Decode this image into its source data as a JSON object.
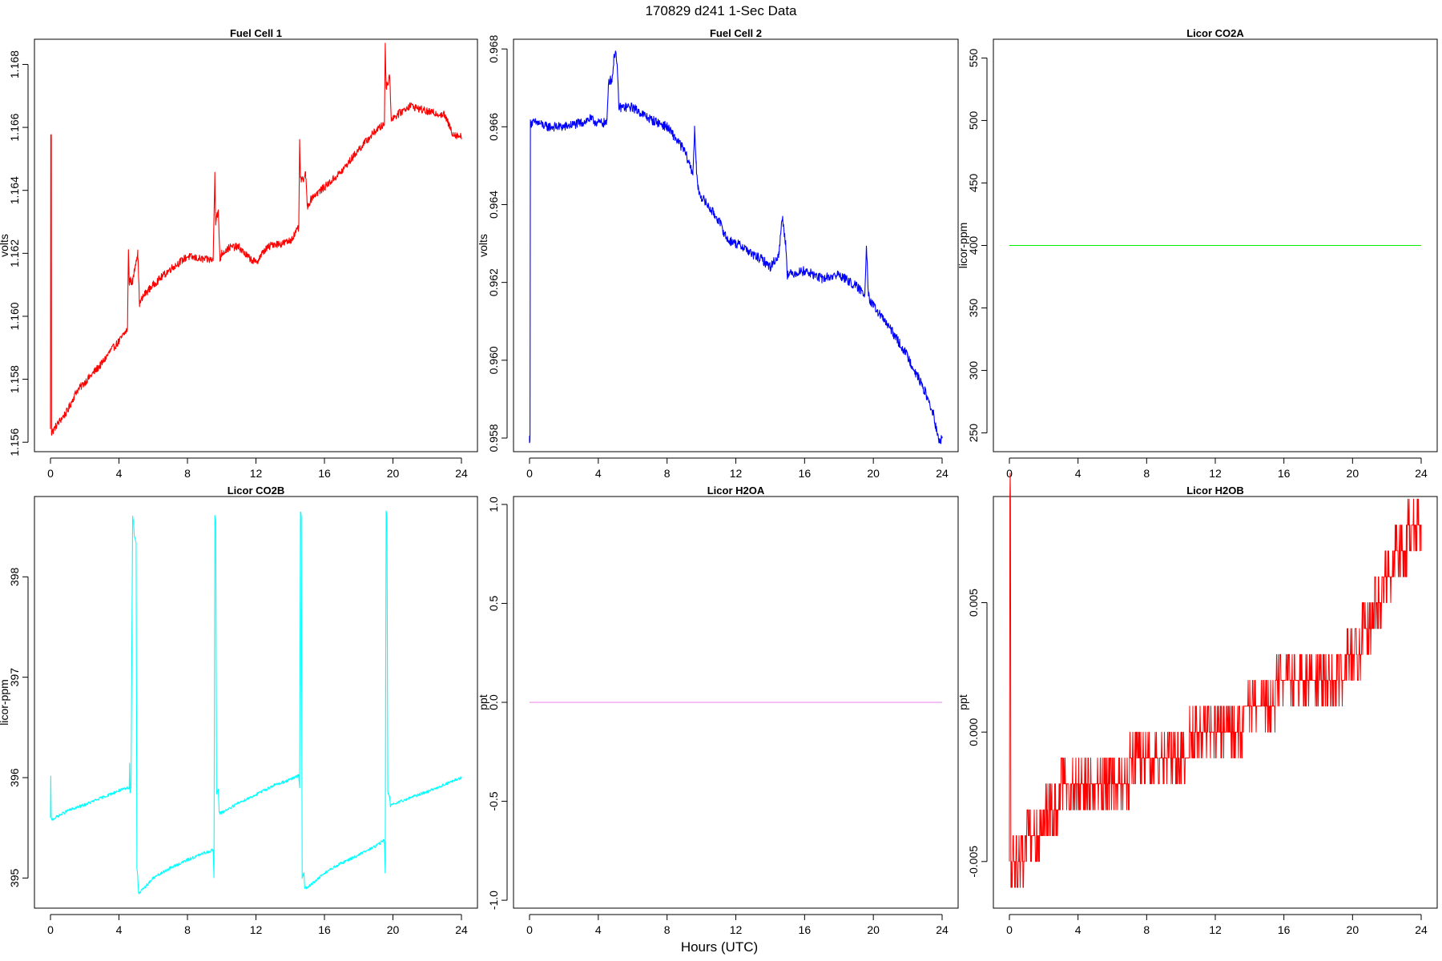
{
  "figure": {
    "title": "170829   d241   1-Sec Data",
    "xlabel": "Hours (UTC)"
  },
  "chart_data": [
    {
      "type": "line",
      "title": "Fuel Cell 1",
      "ylabel": "volts",
      "color": "#ff0000",
      "xlim": [
        0,
        24
      ],
      "ylim": [
        1.1557,
        1.1688
      ],
      "xticks": [
        0,
        4,
        8,
        12,
        16,
        20,
        24
      ],
      "yticks": [
        1.156,
        1.158,
        1.16,
        1.162,
        1.164,
        1.166,
        1.168
      ],
      "ytick_labels": [
        "1.156",
        "1.158",
        "1.160",
        "1.162",
        "1.164",
        "1.166",
        "1.168"
      ],
      "noise": 0.00012,
      "x": [
        0,
        0.02,
        0.05,
        0.06,
        0.08,
        0.3,
        1,
        1.5,
        2,
        3,
        3.5,
        4,
        4.5,
        4.55,
        4.6,
        4.65,
        4.7,
        4.8,
        5,
        5.05,
        5.1,
        5.2,
        5.5,
        6,
        7,
        8,
        9,
        9.5,
        9.6,
        9.65,
        9.7,
        9.8,
        9.9,
        10,
        10.5,
        11,
        11.5,
        12,
        12.5,
        13,
        13.5,
        14,
        14.5,
        14.55,
        14.6,
        14.7,
        14.9,
        15,
        15.3,
        16,
        17,
        18,
        19,
        19.5,
        19.55,
        19.6,
        19.7,
        19.8,
        19.9,
        20,
        21,
        22,
        23,
        23.5,
        24
      ],
      "y": [
        1.1565,
        1.1657,
        1.1657,
        1.1563,
        1.1563,
        1.1565,
        1.157,
        1.1576,
        1.1579,
        1.1585,
        1.1589,
        1.1592,
        1.1596,
        1.1622,
        1.161,
        1.1612,
        1.1611,
        1.1611,
        1.1618,
        1.1619,
        1.162,
        1.1604,
        1.1607,
        1.161,
        1.1615,
        1.1619,
        1.1618,
        1.1618,
        1.1645,
        1.163,
        1.1632,
        1.1633,
        1.1618,
        1.162,
        1.1622,
        1.1622,
        1.1619,
        1.1617,
        1.1621,
        1.1623,
        1.1623,
        1.1624,
        1.1628,
        1.1655,
        1.1644,
        1.1643,
        1.1645,
        1.1635,
        1.1638,
        1.1641,
        1.1646,
        1.1653,
        1.1659,
        1.1661,
        1.1687,
        1.1673,
        1.1674,
        1.1677,
        1.1663,
        1.1663,
        1.1667,
        1.1665,
        1.1664,
        1.1658,
        1.1657
      ]
    },
    {
      "type": "line",
      "title": "Fuel Cell 2",
      "ylabel": "volts",
      "color": "#0000ff",
      "xlim": [
        0,
        24
      ],
      "ylim": [
        0.95765,
        0.96825
      ],
      "xticks": [
        0,
        4,
        8,
        12,
        16,
        20,
        24
      ],
      "yticks": [
        0.958,
        0.96,
        0.962,
        0.964,
        0.966,
        0.968
      ],
      "ytick_labels": [
        "0.958",
        "0.960",
        "0.962",
        "0.964",
        "0.966",
        "0.968"
      ],
      "noise": 0.00012,
      "x": [
        0,
        0.03,
        0.05,
        0.1,
        0.5,
        1,
        2,
        3,
        3.5,
        4,
        4.5,
        4.6,
        4.8,
        4.9,
        5.0,
        5.1,
        5.2,
        5.5,
        6,
        7,
        8,
        9,
        9.5,
        9.6,
        9.7,
        9.8,
        10,
        11,
        11.5,
        12,
        12.5,
        13,
        13.5,
        14,
        14.5,
        14.7,
        14.9,
        15,
        16,
        17,
        18,
        19,
        19.5,
        19.6,
        19.7,
        19.8,
        20,
        21,
        22,
        23,
        23.5,
        23.8,
        24
      ],
      "y": [
        0.958,
        0.958,
        0.9661,
        0.9661,
        0.9661,
        0.966,
        0.966,
        0.9661,
        0.9662,
        0.9661,
        0.9661,
        0.9672,
        0.9672,
        0.9677,
        0.968,
        0.9675,
        0.9665,
        0.9665,
        0.9665,
        0.9662,
        0.966,
        0.9654,
        0.9648,
        0.9659,
        0.965,
        0.9644,
        0.9642,
        0.9636,
        0.9631,
        0.963,
        0.9629,
        0.9627,
        0.9626,
        0.9624,
        0.9627,
        0.9637,
        0.963,
        0.9622,
        0.9623,
        0.9621,
        0.9622,
        0.9619,
        0.9617,
        0.963,
        0.9618,
        0.9615,
        0.9614,
        0.9608,
        0.9601,
        0.9592,
        0.9586,
        0.9579,
        0.958
      ]
    },
    {
      "type": "line",
      "title": "Licor CO2A",
      "ylabel": "licor-ppm",
      "color": "#00ee00",
      "xlim": [
        0,
        24
      ],
      "ylim": [
        235,
        565
      ],
      "xticks": [
        0,
        4,
        8,
        12,
        16,
        20,
        24
      ],
      "yticks": [
        250,
        300,
        350,
        400,
        450,
        500,
        550
      ],
      "ytick_labels": [
        "250",
        "300",
        "350",
        "400",
        "450",
        "500",
        "550"
      ],
      "noise": 0,
      "x": [
        0,
        24
      ],
      "y": [
        400,
        400
      ]
    },
    {
      "type": "line",
      "title": "Licor CO2B",
      "ylabel": "licor-ppm",
      "color": "#00ffff",
      "xlim": [
        0,
        24
      ],
      "ylim": [
        394.7,
        398.8
      ],
      "xticks": [
        0,
        4,
        8,
        12,
        16,
        20,
        24
      ],
      "yticks": [
        395,
        396,
        397,
        398
      ],
      "ytick_labels": [
        "395",
        "396",
        "397",
        "398"
      ],
      "noise": 0.015,
      "x": [
        0,
        0.02,
        0.04,
        0.06,
        1,
        2,
        3,
        4,
        4.6,
        4.62,
        4.65,
        4.7,
        4.8,
        4.85,
        4.9,
        5.0,
        5.05,
        5.1,
        5.15,
        5.2,
        6,
        7,
        8,
        9,
        9.5,
        9.55,
        9.6,
        9.65,
        9.7,
        9.8,
        9.85,
        10,
        11,
        12,
        13,
        14,
        14.5,
        14.55,
        14.6,
        14.65,
        14.7,
        14.8,
        14.85,
        15,
        16,
        17,
        18,
        19,
        19.5,
        19.55,
        19.6,
        19.65,
        19.7,
        19.8,
        19.85,
        20,
        21,
        22,
        23,
        24
      ],
      "y": [
        395.6,
        396.0,
        395.6,
        395.58,
        395.67,
        395.73,
        395.8,
        395.87,
        395.9,
        396.15,
        395.85,
        395.9,
        398.6,
        398.55,
        398.4,
        398.35,
        395.1,
        395.0,
        394.85,
        394.85,
        395.0,
        395.1,
        395.18,
        395.25,
        395.28,
        395.0,
        398.6,
        398.55,
        395.85,
        395.88,
        395.65,
        395.65,
        395.75,
        395.83,
        395.92,
        395.98,
        396.02,
        395.9,
        398.65,
        398.6,
        395.0,
        395.05,
        394.9,
        394.9,
        395.05,
        395.15,
        395.23,
        395.32,
        395.38,
        395.05,
        398.65,
        398.6,
        395.85,
        395.82,
        395.72,
        395.73,
        395.8,
        395.86,
        395.93,
        396.0
      ]
    },
    {
      "type": "line",
      "title": "Licor H2OA",
      "ylabel": "ppt",
      "color": "#ee82ee",
      "xlim": [
        0,
        24
      ],
      "ylim": [
        -1.04,
        1.04
      ],
      "xticks": [
        0,
        4,
        8,
        12,
        16,
        20,
        24
      ],
      "yticks": [
        -1,
        -0.5,
        0,
        0.5,
        1
      ],
      "ytick_labels": [
        "-1.0",
        "-0.5",
        "0.0",
        "0.5",
        "1.0"
      ],
      "noise": 0,
      "x": [
        0,
        24
      ],
      "y": [
        0,
        0
      ]
    },
    {
      "type": "line",
      "title": "Licor H2OB",
      "ylabel": "ppt",
      "color": "#ff0000",
      "xlim": [
        0,
        24
      ],
      "ylim": [
        -0.0068,
        0.0091
      ],
      "xticks": [
        0,
        4,
        8,
        12,
        16,
        20,
        24
      ],
      "yticks": [
        -0.005,
        0,
        0.005
      ],
      "ytick_labels": [
        "-0.005",
        "0.000",
        "0.005"
      ],
      "noise": 0,
      "quantized": true,
      "step": 0.001,
      "flicker": 0.45,
      "x": [
        0,
        0.03,
        0.06,
        0.09,
        0.3,
        1,
        1.7,
        2.2,
        3,
        4,
        5,
        6,
        7,
        8,
        9,
        10,
        11,
        12,
        13,
        14,
        15,
        16,
        17,
        18,
        19,
        20,
        20.5,
        21,
        21.5,
        22,
        22.5,
        23,
        23.5,
        24
      ],
      "y": [
        -0.0055,
        0.0089,
        0.0089,
        -0.0058,
        -0.0052,
        -0.0045,
        -0.004,
        -0.003,
        -0.0025,
        -0.0023,
        -0.0019,
        -0.0016,
        -0.0015,
        -0.0014,
        -0.0009,
        -0.0007,
        -0.0003,
        -0.0002,
        0.0002,
        0.0007,
        0.0014,
        0.0016,
        0.0017,
        0.0019,
        0.0022,
        0.0028,
        0.0034,
        0.0042,
        0.0048,
        0.0058,
        0.0066,
        0.0072,
        0.0081,
        0.0084
      ]
    }
  ]
}
